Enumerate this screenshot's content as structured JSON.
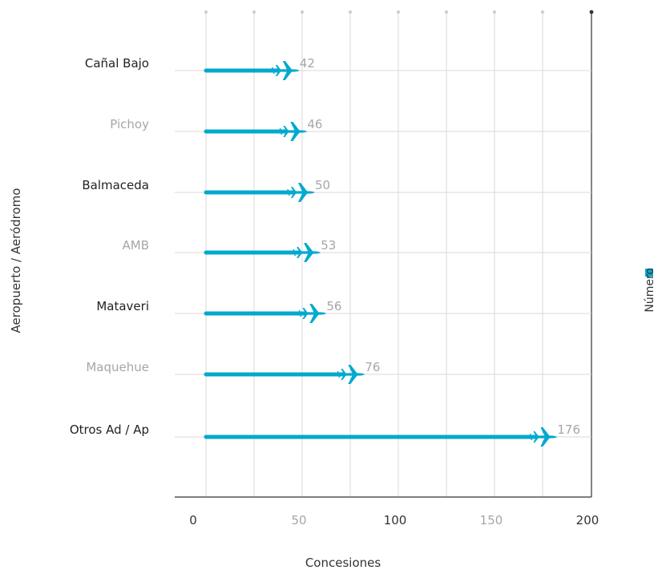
{
  "chart_data": {
    "type": "bar",
    "orientation": "horizontal",
    "categories": [
      "Cañal Bajo",
      "Pichoy",
      "Balmaceda",
      "AMB",
      "Mataveri",
      "Maquehue",
      "Otros Ad / Ap"
    ],
    "series": [
      {
        "name": "Número",
        "values": [
          42,
          46,
          50,
          53,
          56,
          76,
          176
        ]
      }
    ],
    "data_labels": [
      "42",
      "46",
      "50",
      "53",
      "56",
      "76",
      "176"
    ],
    "xlabel": "Concesiones",
    "ylabel": "Aeropuerto / Aeródromo",
    "xlim": [
      0,
      200
    ],
    "x_ticks": [
      0,
      50,
      100,
      150,
      200
    ],
    "x_tick_labels": [
      "0",
      "50",
      "100",
      "150",
      "200"
    ],
    "grid": true,
    "legend_position": "right",
    "marker_icon": "airplane-icon",
    "colors": {
      "bar": "#00a9ce",
      "label_dark": "#222222",
      "label_muted": "#a6a6a6",
      "grid": "#d9d9d9",
      "axis": "#333333"
    }
  }
}
